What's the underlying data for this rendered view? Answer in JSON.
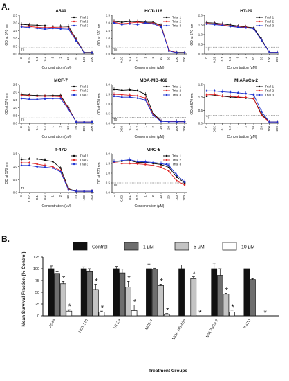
{
  "labels": {
    "a": "A.",
    "b": "B."
  },
  "chart_data": [
    {
      "type": "line",
      "title": "A549",
      "x": [
        "C",
        "0.02",
        "0.1",
        "0.2",
        "1",
        "2",
        "10",
        "20",
        "100",
        "200"
      ],
      "xlabel": "Concentration (μM)",
      "ylabel": "OD at 570 nm",
      "ylim": [
        0,
        2.5
      ],
      "yticks": [
        0.0,
        0.5,
        1.0,
        1.5,
        2.0,
        2.5
      ],
      "t0_label": "T0",
      "t0": 0.4,
      "series": [
        {
          "name": "Trial 1",
          "color": "#000000",
          "values": [
            1.92,
            1.88,
            1.86,
            1.82,
            1.8,
            1.8,
            1.78,
            0.95,
            0.1,
            0.1
          ]
        },
        {
          "name": "Trial 2",
          "color": "#e02020",
          "values": [
            1.8,
            1.78,
            1.72,
            1.7,
            1.72,
            1.7,
            1.68,
            0.9,
            0.08,
            0.08
          ]
        },
        {
          "name": "Trial 3",
          "color": "#1a2fd0",
          "values": [
            1.75,
            1.7,
            1.65,
            1.6,
            1.65,
            1.62,
            1.6,
            0.85,
            0.08,
            0.08
          ]
        }
      ]
    },
    {
      "type": "line",
      "title": "HCT-116",
      "x": [
        "C",
        "0.02",
        "0.1",
        "0.2",
        "1",
        "2",
        "10",
        "20",
        "100",
        "200"
      ],
      "xlabel": "Concentration (μM)",
      "ylabel": "OD at 570 nm",
      "ylim": [
        0,
        2.5
      ],
      "yticks": [
        0.0,
        0.5,
        1.0,
        1.5,
        2.0,
        2.5
      ],
      "t0_label": "T0",
      "t0": 0.4,
      "series": [
        {
          "name": "Trial 1",
          "color": "#000000",
          "values": [
            2.1,
            2.05,
            2.1,
            2.08,
            2.05,
            2.05,
            1.85,
            0.2,
            0.1,
            0.1
          ]
        },
        {
          "name": "Trial 2",
          "color": "#e02020",
          "values": [
            2.05,
            1.95,
            2.0,
            2.05,
            2.0,
            2.0,
            1.8,
            0.25,
            0.08,
            0.08
          ]
        },
        {
          "name": "Trial 3",
          "color": "#1a2fd0",
          "values": [
            2.0,
            1.9,
            1.95,
            1.9,
            2.0,
            1.95,
            1.75,
            0.2,
            0.08,
            0.08
          ]
        }
      ]
    },
    {
      "type": "line",
      "title": "HT-29",
      "x": [
        "C",
        "0.02",
        "0.1",
        "0.2",
        "1",
        "2",
        "10",
        "20",
        "100",
        "200"
      ],
      "xlabel": "Concentration (μM)",
      "ylabel": "OD at 570 nm",
      "ylim": [
        0,
        2.0
      ],
      "yticks": [
        0.0,
        0.5,
        1.0,
        1.5,
        2.0
      ],
      "t0_label": "T0",
      "t0": 0.35,
      "series": [
        {
          "name": "Trial 1",
          "color": "#000000",
          "values": [
            1.62,
            1.6,
            1.55,
            1.5,
            1.45,
            1.4,
            1.35,
            0.75,
            0.08,
            0.08
          ]
        },
        {
          "name": "Trial 2",
          "color": "#e02020",
          "values": [
            1.58,
            1.55,
            1.5,
            1.45,
            1.4,
            1.38,
            1.3,
            0.7,
            0.08,
            0.08
          ]
        },
        {
          "name": "Trial 3",
          "color": "#1a2fd0",
          "values": [
            1.55,
            1.52,
            1.48,
            1.42,
            1.38,
            1.35,
            1.3,
            0.7,
            0.08,
            0.08
          ]
        }
      ]
    },
    {
      "type": "line",
      "title": "MCF-7",
      "x": [
        "C",
        "0.02",
        "0.1",
        "0.2",
        "1",
        "2",
        "10",
        "20",
        "100",
        "200"
      ],
      "xlabel": "Concentration (μM)",
      "ylabel": "OD at 570 nm",
      "ylim": [
        0,
        2.5
      ],
      "yticks": [
        0.0,
        0.5,
        1.0,
        1.5,
        2.0,
        2.5
      ],
      "t0_label": "T0",
      "t0": 0.35,
      "series": [
        {
          "name": "Trial 1",
          "color": "#000000",
          "values": [
            1.85,
            1.82,
            1.8,
            1.78,
            1.8,
            1.8,
            1.0,
            0.08,
            0.08,
            0.08
          ]
        },
        {
          "name": "Trial 2",
          "color": "#e02020",
          "values": [
            1.8,
            1.78,
            1.75,
            1.75,
            1.75,
            1.72,
            0.95,
            0.08,
            0.08,
            0.08
          ]
        },
        {
          "name": "Trial 3",
          "color": "#1a2fd0",
          "values": [
            1.6,
            1.55,
            1.55,
            1.58,
            1.6,
            1.6,
            0.9,
            0.08,
            0.08,
            0.08
          ]
        }
      ]
    },
    {
      "type": "line",
      "title": "MDA-MB-468",
      "x": [
        "C",
        "0.02",
        "0.1",
        "0.2",
        "1",
        "2",
        "10",
        "20",
        "100",
        "200"
      ],
      "xlabel": "Concentration (μM)",
      "ylabel": "OD at 570 nm",
      "ylim": [
        0,
        2.0
      ],
      "yticks": [
        0.0,
        0.5,
        1.0,
        1.5,
        2.0
      ],
      "t0_label": "T0",
      "t0": 0.3,
      "series": [
        {
          "name": "Trial 1",
          "color": "#000000",
          "values": [
            1.75,
            1.7,
            1.72,
            1.68,
            1.5,
            0.5,
            0.12,
            0.1,
            0.1,
            0.1
          ]
        },
        {
          "name": "Trial 2",
          "color": "#e02020",
          "values": [
            1.5,
            1.48,
            1.45,
            1.42,
            1.3,
            0.45,
            0.1,
            0.1,
            0.08,
            0.08
          ]
        },
        {
          "name": "Trial 3",
          "color": "#1a2fd0",
          "values": [
            1.4,
            1.35,
            1.35,
            1.3,
            1.2,
            0.4,
            0.1,
            0.08,
            0.08,
            0.08
          ]
        }
      ]
    },
    {
      "type": "line",
      "title": "MIAPaCa-2",
      "x": [
        "C",
        "0.02",
        "0.1",
        "0.2",
        "1",
        "2",
        "10",
        "20",
        "100",
        "200"
      ],
      "xlabel": "Concentration (μM)",
      "ylabel": "OD at 570 nm",
      "ylim": [
        0,
        1.5
      ],
      "yticks": [
        0.0,
        0.5,
        1.0,
        1.5
      ],
      "t0_label": "T0",
      "t0": 0.3,
      "series": [
        {
          "name": "Trial 1",
          "color": "#000000",
          "values": [
            1.05,
            1.08,
            1.05,
            1.02,
            1.0,
            0.98,
            0.95,
            0.35,
            0.05,
            0.05
          ]
        },
        {
          "name": "Trial 2",
          "color": "#e02020",
          "values": [
            1.1,
            1.12,
            1.05,
            1.05,
            1.02,
            1.0,
            0.95,
            0.3,
            0.05,
            0.05
          ]
        },
        {
          "name": "Trial 3",
          "color": "#1a2fd0",
          "values": [
            1.25,
            1.25,
            1.22,
            1.2,
            1.18,
            1.15,
            1.1,
            0.45,
            0.05,
            0.05
          ]
        }
      ]
    },
    {
      "type": "line",
      "title": "T-47D",
      "x": [
        "C",
        "0.02",
        "0.1",
        "0.2",
        "1",
        "2",
        "10",
        "20",
        "100",
        "200"
      ],
      "xlabel": "Concentration (μM)",
      "ylabel": "OD at 570 nm",
      "ylim": [
        0,
        1.5
      ],
      "yticks": [
        0.0,
        0.5,
        1.0,
        1.5
      ],
      "t0_label": "T0",
      "t0": 0.25,
      "series": [
        {
          "name": "Trial 1",
          "color": "#000000",
          "values": [
            1.28,
            1.3,
            1.3,
            1.25,
            1.2,
            0.95,
            0.15,
            0.05,
            0.05,
            0.05
          ]
        },
        {
          "name": "Trial 2",
          "color": "#e02020",
          "values": [
            1.15,
            1.15,
            1.1,
            1.05,
            1.0,
            0.85,
            0.12,
            0.05,
            0.05,
            0.05
          ]
        },
        {
          "name": "Trial 3",
          "color": "#1a2fd0",
          "values": [
            1.05,
            1.05,
            1.0,
            0.98,
            0.95,
            0.8,
            0.1,
            0.05,
            0.05,
            0.05
          ]
        }
      ]
    },
    {
      "type": "line",
      "title": "MRC-5",
      "x": [
        "C",
        "0.02",
        "0.1",
        "0.2",
        "1",
        "2",
        "10",
        "20",
        "100",
        "200"
      ],
      "xlabel": "Concentration (μM)",
      "ylabel": "OD at 570 nm",
      "ylim": [
        0,
        2.0
      ],
      "yticks": [
        0.0,
        0.5,
        1.0,
        1.5,
        2.0
      ],
      "t0_label": "T0",
      "t0": 0.5,
      "series": [
        {
          "name": "Trial 1",
          "color": "#000000",
          "values": [
            1.6,
            1.62,
            1.65,
            1.55,
            1.55,
            1.5,
            1.45,
            1.3,
            0.8,
            0.5
          ]
        },
        {
          "name": "Trial 2",
          "color": "#e02020",
          "values": [
            1.55,
            1.5,
            1.5,
            1.48,
            1.45,
            1.4,
            1.3,
            1.1,
            0.6,
            0.4
          ]
        },
        {
          "name": "Trial 3",
          "color": "#1a2fd0",
          "values": [
            1.6,
            1.65,
            1.7,
            1.6,
            1.58,
            1.55,
            1.5,
            1.4,
            0.9,
            0.55
          ]
        }
      ]
    },
    {
      "type": "bar",
      "xlabel": "Treatment Groups",
      "ylabel": "Mean Survival  Fraction (% Control)",
      "ylim": [
        0,
        125
      ],
      "yticks": [
        0,
        25,
        50,
        75,
        100,
        125
      ],
      "categories": [
        "A549",
        "HCT 116",
        "HT-29",
        "MCF-7",
        "MDA-MB-468",
        "MIA PaCa-2",
        "T-47D"
      ],
      "legend_position": "top",
      "series": [
        {
          "name": "Control",
          "color": "#111111",
          "values": [
            100,
            100,
            100,
            100,
            100,
            100,
            100
          ],
          "errors": [
            6,
            4,
            5,
            10,
            8,
            12,
            0
          ],
          "stars": [
            false,
            false,
            false,
            false,
            false,
            false,
            false
          ]
        },
        {
          "name": "1 μM",
          "color": "#6e6e6e",
          "values": [
            90,
            95,
            91,
            99,
            0,
            86,
            77
          ],
          "errors": [
            5,
            5,
            8,
            2,
            0,
            14,
            2
          ],
          "stars": [
            false,
            false,
            false,
            false,
            false,
            false,
            false
          ]
        },
        {
          "name": "5 μM",
          "color": "#c4c4c4",
          "values": [
            68,
            56,
            61,
            64,
            79,
            46,
            0
          ],
          "errors": [
            5,
            11,
            12,
            3,
            4,
            2,
            0
          ],
          "stars": [
            true,
            true,
            true,
            true,
            true,
            true,
            false
          ]
        },
        {
          "name": "10 μM",
          "color": "#ffffff",
          "values": [
            10,
            8,
            11,
            3,
            0,
            8,
            0
          ],
          "errors": [
            3,
            2,
            12,
            2,
            0,
            4,
            0
          ],
          "stars": [
            true,
            true,
            true,
            true,
            true,
            true,
            true
          ]
        }
      ]
    }
  ]
}
